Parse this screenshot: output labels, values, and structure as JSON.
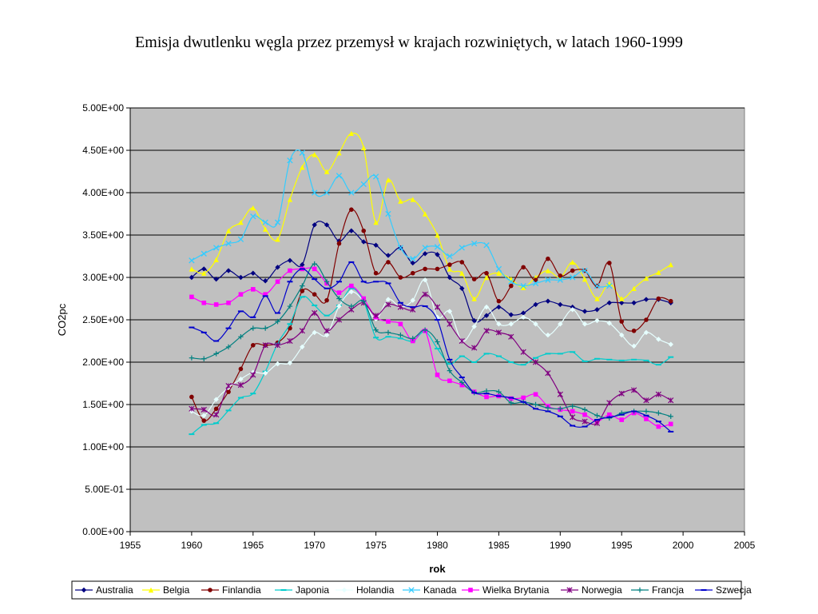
{
  "title": "Emisja dwutlenku węgla przez przemysł w krajach rozwiniętych, w latach 1960-1999",
  "chart_data": {
    "type": "line",
    "title": "Emisja dwutlenku węgla przez przemysł w krajach rozwiniętych, w latach 1960-1999",
    "xlabel": "rok",
    "ylabel": "CO2pc",
    "xlim": [
      1955,
      2005
    ],
    "ylim": [
      0,
      5
    ],
    "x_ticks": [
      1955,
      1960,
      1965,
      1970,
      1975,
      1980,
      1985,
      1990,
      1995,
      2000,
      2005
    ],
    "x_tick_labels": [
      "1955",
      "1960",
      "1965",
      "1970",
      "1975",
      "1980",
      "1985",
      "1990",
      "1995",
      "2000",
      "2005"
    ],
    "y_ticks": [
      0,
      0.5,
      1,
      1.5,
      2,
      2.5,
      3,
      3.5,
      4,
      4.5,
      5
    ],
    "y_tick_labels": [
      "0.00E+00",
      "5.00E-01",
      "1.00E+00",
      "1.50E+00",
      "2.00E+00",
      "2.50E+00",
      "3.00E+00",
      "3.50E+00",
      "4.00E+00",
      "4.50E+00",
      "5.00E+00"
    ],
    "grid": "horizontal",
    "plot_background": "#C0C0C0",
    "legend_placement": "bottom",
    "x": [
      1960,
      1961,
      1962,
      1963,
      1964,
      1965,
      1966,
      1967,
      1968,
      1969,
      1970,
      1971,
      1972,
      1973,
      1974,
      1975,
      1976,
      1977,
      1978,
      1979,
      1980,
      1981,
      1982,
      1983,
      1984,
      1985,
      1986,
      1987,
      1988,
      1989,
      1990,
      1991,
      1992,
      1993,
      1994,
      1995,
      1996,
      1997,
      1998,
      1999
    ],
    "series": [
      {
        "name": "Australia",
        "color": "#000080",
        "marker": "diamond",
        "values": [
          3.0,
          3.1,
          2.98,
          3.08,
          3.0,
          3.05,
          2.96,
          3.12,
          3.2,
          3.15,
          3.62,
          3.62,
          3.43,
          3.55,
          3.42,
          3.38,
          3.26,
          3.35,
          3.17,
          3.28,
          3.27,
          3.0,
          2.87,
          2.49,
          2.55,
          2.65,
          2.56,
          2.58,
          2.68,
          2.72,
          2.68,
          2.65,
          2.6,
          2.62,
          2.7,
          2.7,
          2.7,
          2.74,
          2.74,
          2.7
        ]
      },
      {
        "name": "Belgia",
        "color": "#FFFF00",
        "marker": "triangle",
        "values": [
          3.1,
          3.05,
          3.21,
          3.55,
          3.65,
          3.82,
          3.57,
          3.45,
          3.92,
          4.3,
          4.45,
          4.25,
          4.47,
          4.7,
          4.53,
          3.65,
          4.15,
          3.9,
          3.92,
          3.75,
          3.5,
          3.1,
          3.05,
          2.75,
          3.0,
          3.05,
          2.98,
          2.88,
          3.0,
          3.08,
          3.0,
          3.18,
          2.98,
          2.75,
          2.93,
          2.75,
          2.87,
          2.99,
          3.06,
          3.15
        ]
      },
      {
        "name": "Finlandia",
        "color": "#800000",
        "marker": "circle",
        "values": [
          1.59,
          1.31,
          1.45,
          1.65,
          1.92,
          2.2,
          2.2,
          2.23,
          2.4,
          2.84,
          2.8,
          2.73,
          3.4,
          3.8,
          3.55,
          3.05,
          3.18,
          3.0,
          3.05,
          3.1,
          3.1,
          3.15,
          3.18,
          2.98,
          3.05,
          2.72,
          2.9,
          3.12,
          2.97,
          3.22,
          3.02,
          3.08,
          3.08,
          2.9,
          3.17,
          2.48,
          2.37,
          2.5,
          2.75,
          2.72
        ]
      },
      {
        "name": "Japonia",
        "color": "#00CCCC",
        "marker": "dash",
        "values": [
          1.15,
          1.26,
          1.28,
          1.43,
          1.58,
          1.63,
          1.89,
          2.22,
          2.45,
          2.77,
          2.67,
          2.55,
          2.67,
          2.87,
          2.72,
          2.29,
          2.3,
          2.28,
          2.25,
          2.36,
          2.16,
          1.98,
          2.07,
          2.0,
          2.1,
          2.07,
          2.0,
          1.97,
          2.05,
          2.1,
          2.1,
          2.12,
          2.01,
          2.04,
          2.03,
          2.02,
          2.03,
          2.02,
          1.97,
          2.06
        ]
      },
      {
        "name": "Holandia",
        "color": "#E6FFFF",
        "marker": "diamond",
        "values": [
          1.42,
          1.37,
          1.56,
          1.7,
          1.8,
          1.88,
          1.87,
          1.98,
          1.99,
          2.18,
          2.35,
          2.32,
          2.66,
          2.83,
          2.72,
          2.51,
          2.74,
          2.65,
          2.73,
          2.97,
          2.53,
          2.6,
          2.25,
          2.42,
          2.65,
          2.45,
          2.45,
          2.53,
          2.45,
          2.32,
          2.45,
          2.62,
          2.45,
          2.49,
          2.46,
          2.32,
          2.19,
          2.35,
          2.27,
          2.21
        ]
      },
      {
        "name": "Kanada",
        "color": "#33CCFF",
        "marker": "x",
        "values": [
          3.2,
          3.28,
          3.35,
          3.4,
          3.45,
          3.72,
          3.65,
          3.65,
          4.38,
          4.47,
          4.0,
          4.0,
          4.2,
          4.0,
          4.1,
          4.19,
          3.75,
          3.35,
          3.22,
          3.35,
          3.36,
          3.25,
          3.35,
          3.4,
          3.38,
          3.1,
          2.95,
          2.9,
          2.93,
          2.97,
          2.97,
          3.0,
          3.08,
          2.9,
          2.9,
          null,
          null,
          null,
          null,
          null
        ]
      },
      {
        "name": "Wielka Brytania",
        "color": "#FF00FF",
        "marker": "square",
        "values": [
          2.77,
          2.7,
          2.68,
          2.7,
          2.8,
          2.86,
          2.8,
          2.95,
          3.08,
          3.1,
          3.1,
          2.93,
          2.82,
          2.9,
          2.75,
          2.53,
          2.48,
          2.45,
          2.25,
          2.37,
          1.85,
          1.78,
          1.73,
          1.65,
          1.59,
          1.6,
          1.57,
          1.58,
          1.62,
          1.48,
          1.44,
          1.42,
          1.38,
          1.3,
          1.38,
          1.32,
          1.4,
          1.33,
          1.24,
          1.27
        ]
      },
      {
        "name": "Norwegia",
        "color": "#800080",
        "marker": "star",
        "values": [
          1.45,
          1.44,
          1.38,
          1.72,
          1.73,
          1.85,
          2.2,
          2.2,
          2.25,
          2.37,
          2.58,
          2.37,
          2.5,
          2.62,
          2.7,
          2.55,
          2.68,
          2.65,
          2.62,
          2.8,
          2.65,
          2.45,
          2.25,
          2.17,
          2.37,
          2.35,
          2.3,
          2.12,
          2.0,
          1.87,
          1.62,
          1.35,
          1.3,
          1.28,
          1.52,
          1.63,
          1.67,
          1.55,
          1.62,
          1.55
        ]
      },
      {
        "name": "Francja",
        "color": "#008080",
        "marker": "plus",
        "values": [
          2.05,
          2.04,
          2.1,
          2.18,
          2.3,
          2.4,
          2.4,
          2.48,
          2.66,
          2.9,
          3.16,
          2.95,
          2.75,
          2.66,
          2.72,
          2.38,
          2.35,
          2.32,
          2.28,
          2.38,
          2.24,
          1.9,
          1.76,
          1.64,
          1.66,
          1.65,
          1.52,
          1.53,
          1.5,
          1.46,
          1.45,
          1.48,
          1.44,
          1.37,
          1.34,
          1.4,
          1.42,
          1.42,
          1.4,
          1.36
        ]
      },
      {
        "name": "Szwecja",
        "color": "#0000CC",
        "marker": "dash",
        "values": [
          2.41,
          2.35,
          2.25,
          2.4,
          2.6,
          2.53,
          2.78,
          2.58,
          2.95,
          3.1,
          2.98,
          2.87,
          2.95,
          3.18,
          2.95,
          2.95,
          2.93,
          2.7,
          2.65,
          2.66,
          2.5,
          2.03,
          1.82,
          1.64,
          1.63,
          1.6,
          1.58,
          1.53,
          1.45,
          1.42,
          1.36,
          1.25,
          1.24,
          1.32,
          1.35,
          1.38,
          1.42,
          1.37,
          1.3,
          1.18
        ]
      }
    ]
  }
}
